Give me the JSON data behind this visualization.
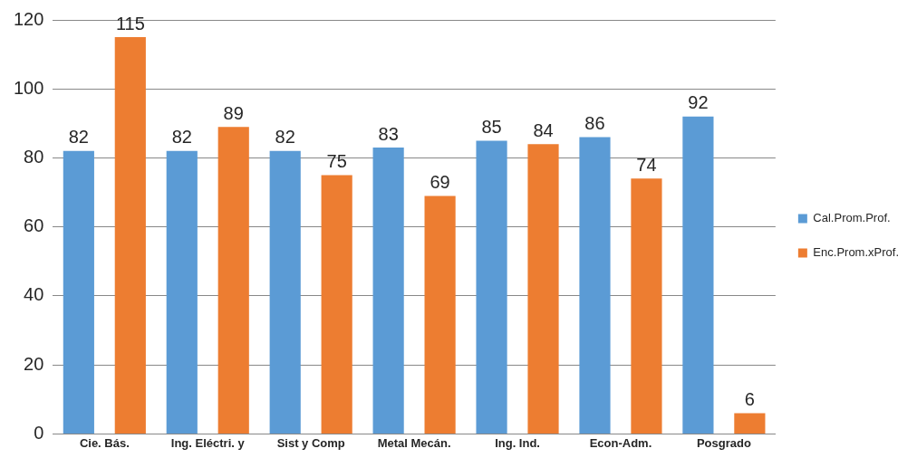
{
  "chart_data": {
    "type": "bar",
    "categories": [
      "Cie. Bás.",
      "Ing. Eléctri. y",
      "Sist y Comp",
      "Metal Mecán.",
      "Ing. Ind.",
      "Econ-Adm.",
      "Posgrado"
    ],
    "series": [
      {
        "name": "Cal.Prom.Prof.",
        "color": "#5b9bd5",
        "values": [
          82,
          82,
          82,
          83,
          85,
          86,
          92
        ]
      },
      {
        "name": "Enc.Prom.xProf.",
        "color": "#ed7d31",
        "values": [
          115,
          89,
          75,
          69,
          84,
          74,
          6
        ]
      }
    ],
    "ylim": [
      0,
      120
    ],
    "yticks": [
      0,
      20,
      40,
      60,
      80,
      100,
      120
    ],
    "grid": "y",
    "legend": "right",
    "data_labels": true
  }
}
